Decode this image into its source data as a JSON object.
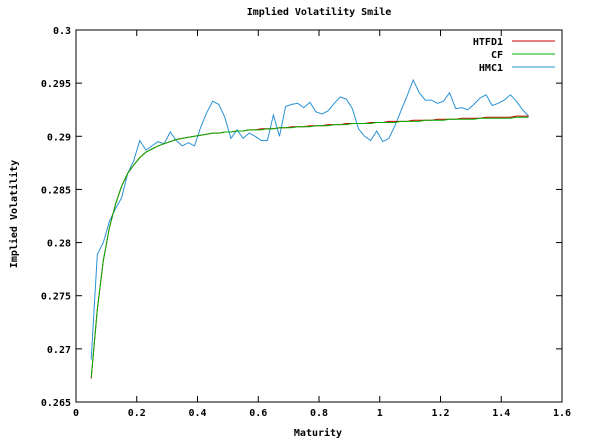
{
  "chart_data": {
    "type": "line",
    "title": "Implied Volatility Smile",
    "xlabel": "Maturity",
    "ylabel": "Implied Volatility",
    "xlim": [
      0,
      1.6
    ],
    "ylim": [
      0.265,
      0.3
    ],
    "x_ticks": [
      "0",
      "0.2",
      "0.4",
      "0.6",
      "0.8",
      "1",
      "1.2",
      "1.4",
      "1.6"
    ],
    "y_ticks": [
      "0.265",
      "0.27",
      "0.275",
      "0.28",
      "0.285",
      "0.29",
      "0.295",
      "0.3"
    ],
    "grid": false,
    "legend_position": "top-right",
    "series": [
      {
        "name": "HTFD1",
        "color": "#cc0000",
        "x": [
          0.05,
          0.07,
          0.09,
          0.11,
          0.13,
          0.15,
          0.17,
          0.19,
          0.21,
          0.23,
          0.25,
          0.27,
          0.29,
          0.31,
          0.33,
          0.35,
          0.37,
          0.39,
          0.41,
          0.43,
          0.45,
          0.47,
          0.49,
          0.51,
          0.53,
          0.55,
          0.57,
          0.59,
          0.61,
          0.63,
          0.65,
          0.67,
          0.69,
          0.71,
          0.73,
          0.75,
          0.77,
          0.79,
          0.81,
          0.83,
          0.85,
          0.87,
          0.89,
          0.91,
          0.93,
          0.95,
          0.97,
          0.99,
          1.01,
          1.03,
          1.05,
          1.07,
          1.09,
          1.11,
          1.13,
          1.15,
          1.17,
          1.19,
          1.21,
          1.23,
          1.25,
          1.27,
          1.29,
          1.31,
          1.33,
          1.35,
          1.37,
          1.39,
          1.41,
          1.43,
          1.45,
          1.47,
          1.49
        ],
        "y": [
          0.2672,
          0.2737,
          0.2783,
          0.2814,
          0.2836,
          0.2853,
          0.2865,
          0.2873,
          0.288,
          0.2885,
          0.2888,
          0.2891,
          0.2893,
          0.2895,
          0.2897,
          0.2898,
          0.2899,
          0.29,
          0.2901,
          0.2902,
          0.2903,
          0.2903,
          0.2904,
          0.2904,
          0.2905,
          0.2905,
          0.2906,
          0.2906,
          0.2907,
          0.2907,
          0.2907,
          0.2908,
          0.2908,
          0.2909,
          0.2909,
          0.2909,
          0.291,
          0.291,
          0.291,
          0.2911,
          0.2911,
          0.2911,
          0.2912,
          0.2912,
          0.2912,
          0.2912,
          0.2913,
          0.2913,
          0.2913,
          0.2914,
          0.2914,
          0.2914,
          0.2914,
          0.2915,
          0.2915,
          0.2915,
          0.2915,
          0.2916,
          0.2916,
          0.2916,
          0.2916,
          0.2917,
          0.2917,
          0.2917,
          0.2917,
          0.2918,
          0.2918,
          0.2918,
          0.2918,
          0.2918,
          0.2919,
          0.2919,
          0.2919
        ]
      },
      {
        "name": "CF",
        "color": "#00b000",
        "x": [
          0.05,
          0.07,
          0.09,
          0.11,
          0.13,
          0.15,
          0.17,
          0.19,
          0.21,
          0.23,
          0.25,
          0.27,
          0.29,
          0.31,
          0.33,
          0.35,
          0.37,
          0.39,
          0.41,
          0.43,
          0.45,
          0.47,
          0.49,
          0.51,
          0.53,
          0.55,
          0.57,
          0.59,
          0.61,
          0.63,
          0.65,
          0.67,
          0.69,
          0.71,
          0.73,
          0.75,
          0.77,
          0.79,
          0.81,
          0.83,
          0.85,
          0.87,
          0.89,
          0.91,
          0.93,
          0.95,
          0.97,
          0.99,
          1.01,
          1.03,
          1.05,
          1.07,
          1.09,
          1.11,
          1.13,
          1.15,
          1.17,
          1.19,
          1.21,
          1.23,
          1.25,
          1.27,
          1.29,
          1.31,
          1.33,
          1.35,
          1.37,
          1.39,
          1.41,
          1.43,
          1.45,
          1.47,
          1.49
        ],
        "y": [
          0.2673,
          0.2737,
          0.2783,
          0.2814,
          0.2836,
          0.2853,
          0.2865,
          0.2873,
          0.288,
          0.2885,
          0.2888,
          0.2891,
          0.2893,
          0.2895,
          0.2897,
          0.2898,
          0.2899,
          0.29,
          0.2901,
          0.2902,
          0.2903,
          0.2903,
          0.2904,
          0.2904,
          0.2905,
          0.2905,
          0.2906,
          0.2906,
          0.2906,
          0.2907,
          0.2907,
          0.2908,
          0.2908,
          0.2908,
          0.2909,
          0.2909,
          0.2909,
          0.291,
          0.291,
          0.291,
          0.2911,
          0.2911,
          0.2911,
          0.2912,
          0.2912,
          0.2912,
          0.2912,
          0.2913,
          0.2913,
          0.2913,
          0.2913,
          0.2914,
          0.2914,
          0.2914,
          0.2914,
          0.2915,
          0.2915,
          0.2915,
          0.2915,
          0.2916,
          0.2916,
          0.2916,
          0.2916,
          0.2916,
          0.2917,
          0.2917,
          0.2917,
          0.2917,
          0.2917,
          0.2917,
          0.2918,
          0.2918,
          0.2918
        ]
      },
      {
        "name": "HMC1",
        "color": "#2a93d5",
        "x": [
          0.05,
          0.07,
          0.09,
          0.11,
          0.13,
          0.15,
          0.17,
          0.19,
          0.21,
          0.23,
          0.25,
          0.27,
          0.29,
          0.31,
          0.33,
          0.35,
          0.37,
          0.39,
          0.41,
          0.43,
          0.45,
          0.47,
          0.49,
          0.51,
          0.53,
          0.55,
          0.57,
          0.59,
          0.61,
          0.63,
          0.65,
          0.67,
          0.69,
          0.71,
          0.73,
          0.75,
          0.77,
          0.79,
          0.81,
          0.83,
          0.85,
          0.87,
          0.89,
          0.91,
          0.93,
          0.95,
          0.97,
          0.99,
          1.01,
          1.03,
          1.05,
          1.07,
          1.09,
          1.11,
          1.13,
          1.15,
          1.17,
          1.19,
          1.21,
          1.23,
          1.25,
          1.27,
          1.29,
          1.31,
          1.33,
          1.35,
          1.37,
          1.39,
          1.41,
          1.43,
          1.45,
          1.47,
          1.49
        ],
        "y": [
          0.269,
          0.2789,
          0.28,
          0.282,
          0.2832,
          0.2842,
          0.2865,
          0.2877,
          0.2896,
          0.2887,
          0.2891,
          0.2895,
          0.2893,
          0.2904,
          0.2896,
          0.2891,
          0.2894,
          0.2891,
          0.2908,
          0.2922,
          0.2933,
          0.293,
          0.2918,
          0.2898,
          0.2906,
          0.2898,
          0.2903,
          0.29,
          0.2896,
          0.2896,
          0.292,
          0.29,
          0.2928,
          0.293,
          0.2931,
          0.2927,
          0.2932,
          0.2923,
          0.2921,
          0.2924,
          0.2931,
          0.2937,
          0.2935,
          0.2926,
          0.2907,
          0.29,
          0.2896,
          0.2905,
          0.2895,
          0.2898,
          0.291,
          0.2924,
          0.2938,
          0.2953,
          0.2941,
          0.2934,
          0.2934,
          0.2931,
          0.2933,
          0.2941,
          0.2926,
          0.2927,
          0.2925,
          0.293,
          0.2936,
          0.2939,
          0.2929,
          0.2931,
          0.2934,
          0.2939,
          0.2933,
          0.2925,
          0.2919
        ]
      }
    ]
  }
}
